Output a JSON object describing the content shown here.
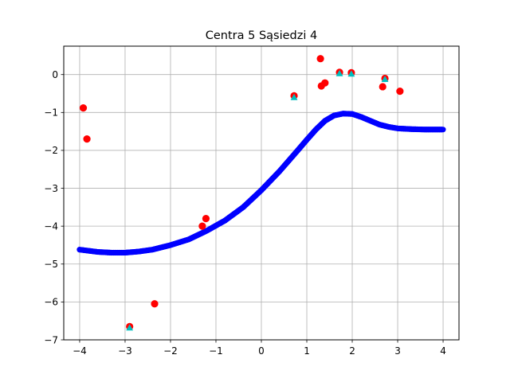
{
  "chart_data": {
    "type": "scatter",
    "title": "Centra 5 Sąsiedzi 4",
    "xlabel": "",
    "ylabel": "",
    "xlim": [
      -4.35,
      4.35
    ],
    "ylim": [
      -7.0,
      0.75
    ],
    "grid": true,
    "x_ticks": [
      -4,
      -3,
      -2,
      -1,
      0,
      1,
      2,
      3,
      4
    ],
    "y_ticks": [
      -7,
      -6,
      -5,
      -4,
      -3,
      -2,
      -1,
      0
    ],
    "x_tick_labels": [
      "−4",
      "−3",
      "−2",
      "−1",
      "0",
      "1",
      "2",
      "3",
      "4"
    ],
    "y_tick_labels": [
      "−7",
      "−6",
      "−5",
      "−4",
      "−3",
      "−2",
      "−1",
      "0"
    ],
    "colors": {
      "curve": "#0000ff",
      "samples": "#ff0000",
      "centers": "#00bfbf",
      "grid": "#b0b0b0"
    },
    "series": [
      {
        "kind": "curve",
        "color": "#0000ff",
        "x": [
          -4.0,
          -3.6,
          -3.3,
          -3.0,
          -2.7,
          -2.4,
          -2.0,
          -1.6,
          -1.2,
          -0.8,
          -0.4,
          0.0,
          0.4,
          0.8,
          1.0,
          1.2,
          1.4,
          1.6,
          1.8,
          2.0,
          2.2,
          2.4,
          2.6,
          2.8,
          3.0,
          3.3,
          3.6,
          4.0
        ],
        "y": [
          -4.62,
          -4.68,
          -4.7,
          -4.7,
          -4.67,
          -4.62,
          -4.5,
          -4.35,
          -4.12,
          -3.85,
          -3.5,
          -3.05,
          -2.55,
          -2.0,
          -1.72,
          -1.45,
          -1.22,
          -1.08,
          -1.03,
          -1.04,
          -1.12,
          -1.22,
          -1.32,
          -1.38,
          -1.42,
          -1.44,
          -1.45,
          -1.45
        ]
      },
      {
        "kind": "samples",
        "color": "#ff0000",
        "x": [
          -3.92,
          -3.84,
          -2.9,
          -2.35,
          -1.3,
          -1.22,
          0.72,
          1.3,
          1.32,
          1.4,
          1.72,
          1.98,
          2.67,
          2.72,
          3.05
        ],
        "y": [
          -0.88,
          -1.7,
          -6.65,
          -6.05,
          -4.0,
          -3.8,
          -0.56,
          0.42,
          -0.3,
          -0.22,
          0.06,
          0.05,
          -0.32,
          -0.1,
          -0.44
        ]
      },
      {
        "kind": "centers",
        "color": "#00bfbf",
        "x": [
          -2.9,
          0.72,
          1.72,
          1.98,
          2.72
        ],
        "y": [
          -6.68,
          -0.6,
          0.03,
          0.02,
          -0.12
        ]
      }
    ]
  }
}
